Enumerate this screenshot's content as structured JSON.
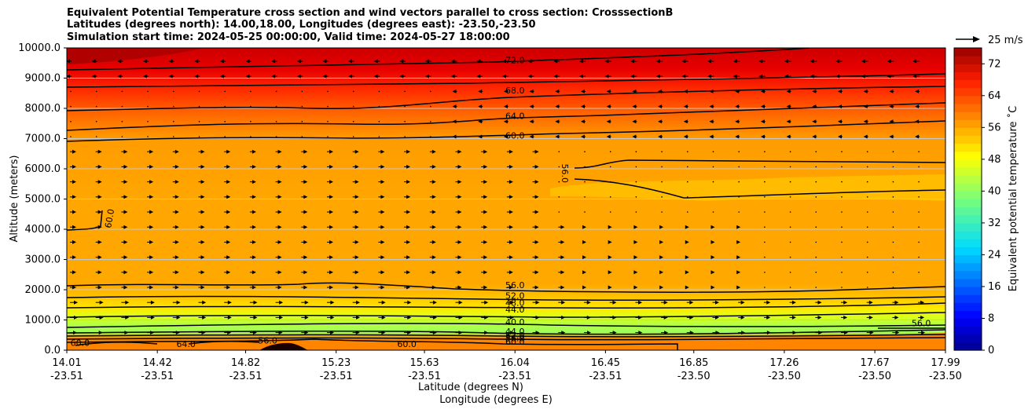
{
  "chart_data": {
    "type": "contourf",
    "title_lines": [
      "Equivalent Potential Temperature cross section and wind vectors parallel to cross section: CrosssectionB",
      "Latitudes (degrees north): 14.00,18.00, Longitudes (degrees east): -23.50,-23.50",
      "Simulation start time: 2024-05-25 00:00:00, Valid time: 2024-05-27 18:00:00"
    ],
    "ylabel": "Altitude (meters)",
    "xlabel_lat": "Latitude (degrees N)",
    "xlabel_lon": "Longitude (degrees E)",
    "x_ticks": [
      {
        "lat": "14.01",
        "lon": "-23.51"
      },
      {
        "lat": "14.42",
        "lon": "-23.51"
      },
      {
        "lat": "14.82",
        "lon": "-23.51"
      },
      {
        "lat": "15.23",
        "lon": "-23.51"
      },
      {
        "lat": "15.63",
        "lon": "-23.51"
      },
      {
        "lat": "16.04",
        "lon": "-23.51"
      },
      {
        "lat": "16.45",
        "lon": "-23.51"
      },
      {
        "lat": "16.85",
        "lon": "-23.50"
      },
      {
        "lat": "17.26",
        "lon": "-23.50"
      },
      {
        "lat": "17.67",
        "lon": "-23.50"
      },
      {
        "lat": "17.99",
        "lon": "-23.50"
      }
    ],
    "xlim": [
      14.01,
      17.99
    ],
    "ylim": [
      0,
      10000
    ],
    "y_ticks": [
      "0.0",
      "1000.0",
      "2000.0",
      "3000.0",
      "4000.0",
      "5000.0",
      "6000.0",
      "7000.0",
      "8000.0",
      "9000.0",
      "10000.0"
    ],
    "grid": "horizontal",
    "colorbar": {
      "label": "Equivalent potential temperature ˚C",
      "min": 0,
      "max": 76,
      "step": 2,
      "ticks": [
        "0",
        "8",
        "16",
        "24",
        "32",
        "40",
        "48",
        "56",
        "64",
        "72"
      ]
    },
    "quiver_key": "25 m/s",
    "contour_labels": [
      {
        "text": "72.0",
        "lat": 16.04,
        "alt": 9550
      },
      {
        "text": "68.0",
        "lat": 16.04,
        "alt": 8550
      },
      {
        "text": "64.0",
        "lat": 16.04,
        "alt": 7700
      },
      {
        "text": "60.0",
        "lat": 16.04,
        "alt": 7050
      },
      {
        "text": "56.0",
        "lat": 16.26,
        "alt": 5850
      },
      {
        "text": "60.0",
        "lat": 14.21,
        "alt": 4350
      },
      {
        "text": "56.0",
        "lat": 16.04,
        "alt": 2100
      },
      {
        "text": "52.0",
        "lat": 16.04,
        "alt": 1750
      },
      {
        "text": "48.0",
        "lat": 16.04,
        "alt": 1520
      },
      {
        "text": "44.0",
        "lat": 16.04,
        "alt": 1300
      },
      {
        "text": "40.0",
        "lat": 16.04,
        "alt": 880
      },
      {
        "text": "44.0",
        "lat": 16.04,
        "alt": 570
      },
      {
        "text": "52.0",
        "lat": 16.04,
        "alt": 440
      },
      {
        "text": "56.0",
        "lat": 16.04,
        "alt": 350
      },
      {
        "text": "60.0",
        "lat": 16.04,
        "alt": 230
      },
      {
        "text": "60.0",
        "lat": 15.55,
        "alt": 150
      },
      {
        "text": "60.0",
        "lat": 14.07,
        "alt": 200
      },
      {
        "text": "64.0",
        "lat": 14.55,
        "alt": 150
      },
      {
        "text": "56.0",
        "lat": 14.92,
        "alt": 270
      },
      {
        "text": "56.0",
        "lat": 17.88,
        "alt": 850
      }
    ]
  }
}
